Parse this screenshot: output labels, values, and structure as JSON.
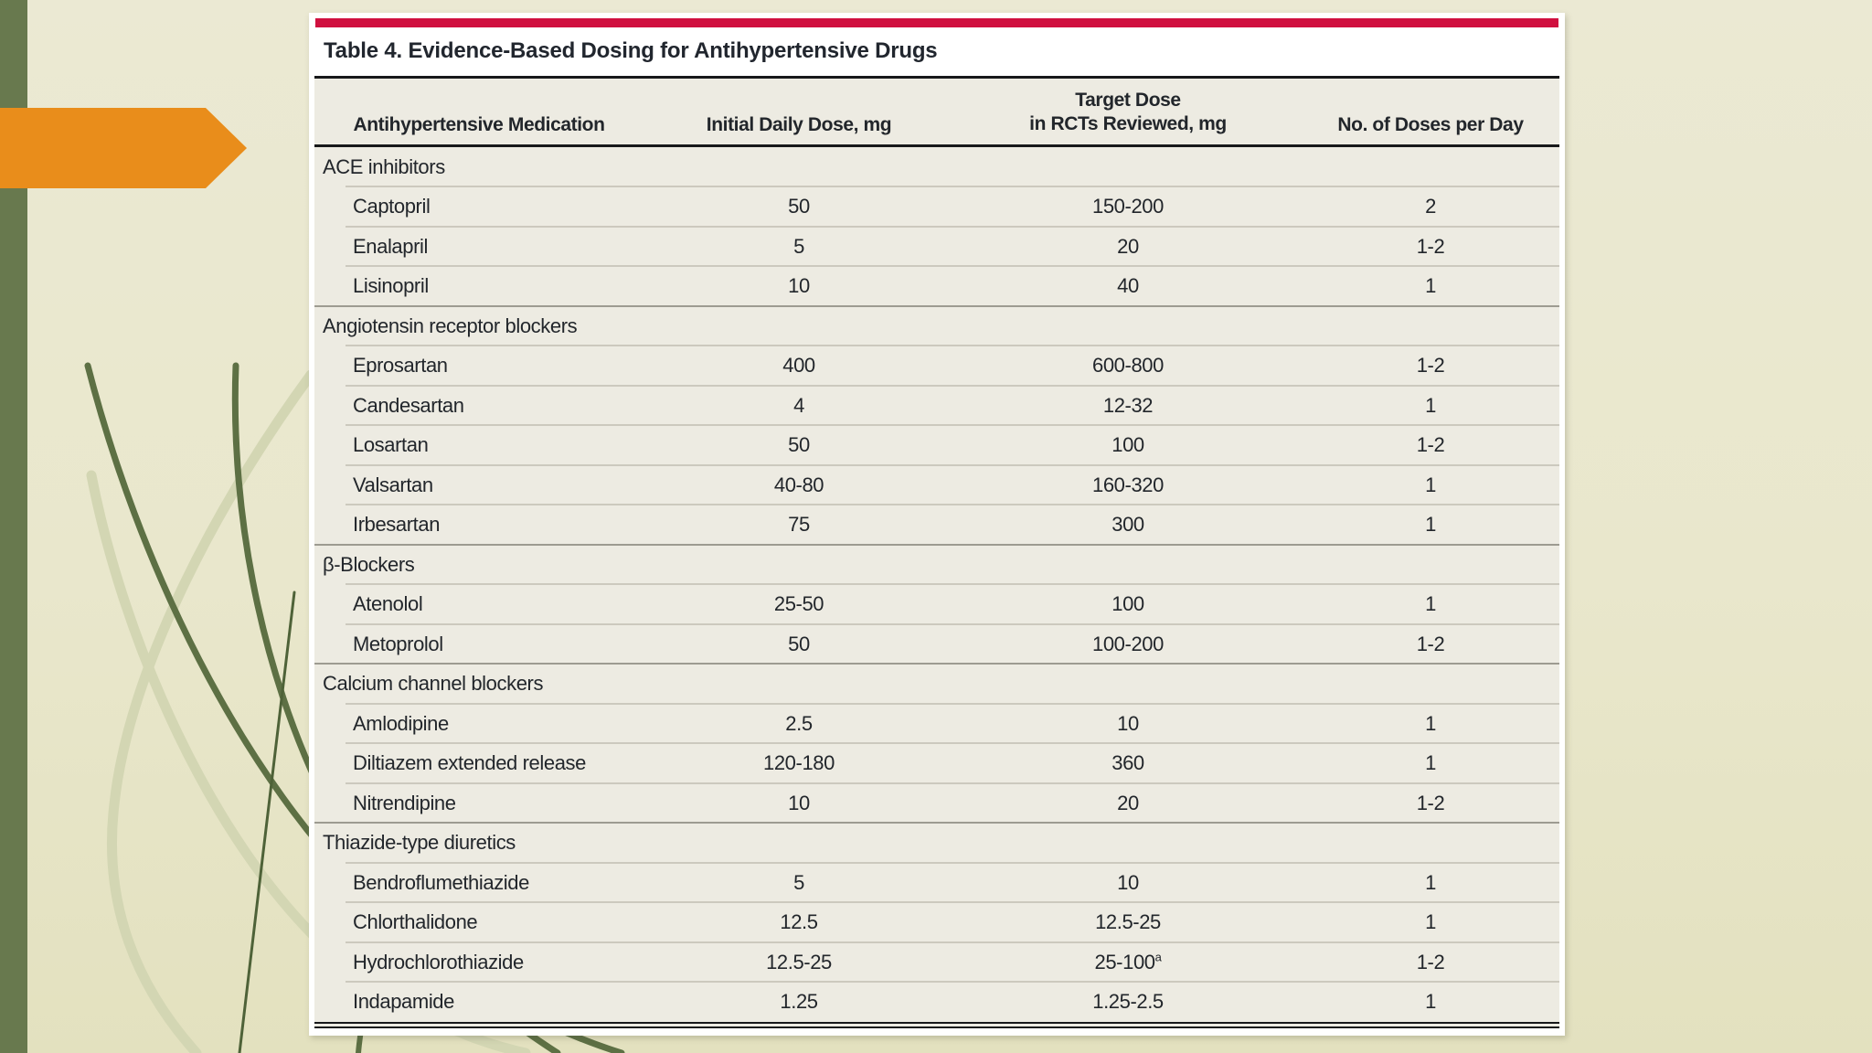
{
  "slide": {
    "colors": {
      "background": "#e9e7cc",
      "sidebar_stripe": "#68794e",
      "arrow": "#e98d1b",
      "accent_red_bar": "#d0103f",
      "grass_dark": "#5d7044",
      "grass_light": "#d3d6b3",
      "table_body_bg": "#edebe2"
    }
  },
  "table": {
    "title": "Table 4. Evidence-Based Dosing for Antihypertensive Drugs",
    "headers": {
      "col1": "Antihypertensive Medication",
      "col2": "Initial Daily Dose, mg",
      "col3_line1": "Target Dose",
      "col3_line2": "in RCTs Reviewed, mg",
      "col4": "No. of Doses per Day"
    },
    "groups": [
      {
        "name": "ACE inhibitors",
        "drugs": [
          {
            "name": "Captopril",
            "initial": "50",
            "target": "150-200",
            "doses": "2"
          },
          {
            "name": "Enalapril",
            "initial": "5",
            "target": "20",
            "doses": "1-2"
          },
          {
            "name": "Lisinopril",
            "initial": "10",
            "target": "40",
            "doses": "1"
          }
        ]
      },
      {
        "name": "Angiotensin receptor blockers",
        "drugs": [
          {
            "name": "Eprosartan",
            "initial": "400",
            "target": "600-800",
            "doses": "1-2"
          },
          {
            "name": "Candesartan",
            "initial": "4",
            "target": "12-32",
            "doses": "1"
          },
          {
            "name": "Losartan",
            "initial": "50",
            "target": "100",
            "doses": "1-2"
          },
          {
            "name": "Valsartan",
            "initial": "40-80",
            "target": "160-320",
            "doses": "1"
          },
          {
            "name": "Irbesartan",
            "initial": "75",
            "target": "300",
            "doses": "1"
          }
        ]
      },
      {
        "name": "β-Blockers",
        "drugs": [
          {
            "name": "Atenolol",
            "initial": "25-50",
            "target": "100",
            "doses": "1"
          },
          {
            "name": "Metoprolol",
            "initial": "50",
            "target": "100-200",
            "doses": "1-2"
          }
        ]
      },
      {
        "name": "Calcium channel blockers",
        "drugs": [
          {
            "name": "Amlodipine",
            "initial": "2.5",
            "target": "10",
            "doses": "1"
          },
          {
            "name": "Diltiazem extended release",
            "initial": "120-180",
            "target": "360",
            "doses": "1"
          },
          {
            "name": "Nitrendipine",
            "initial": "10",
            "target": "20",
            "doses": "1-2"
          }
        ]
      },
      {
        "name": "Thiazide-type diuretics",
        "drugs": [
          {
            "name": "Bendroflumethiazide",
            "initial": "5",
            "target": "10",
            "doses": "1"
          },
          {
            "name": "Chlorthalidone",
            "initial": "12.5",
            "target": "12.5-25",
            "doses": "1"
          },
          {
            "name": "Hydrochlorothiazide",
            "initial": "12.5-25",
            "target": "25-100",
            "target_sup": "a",
            "doses": "1-2"
          },
          {
            "name": "Indapamide",
            "initial": "1.25",
            "target": "1.25-2.5",
            "doses": "1"
          }
        ]
      }
    ]
  }
}
